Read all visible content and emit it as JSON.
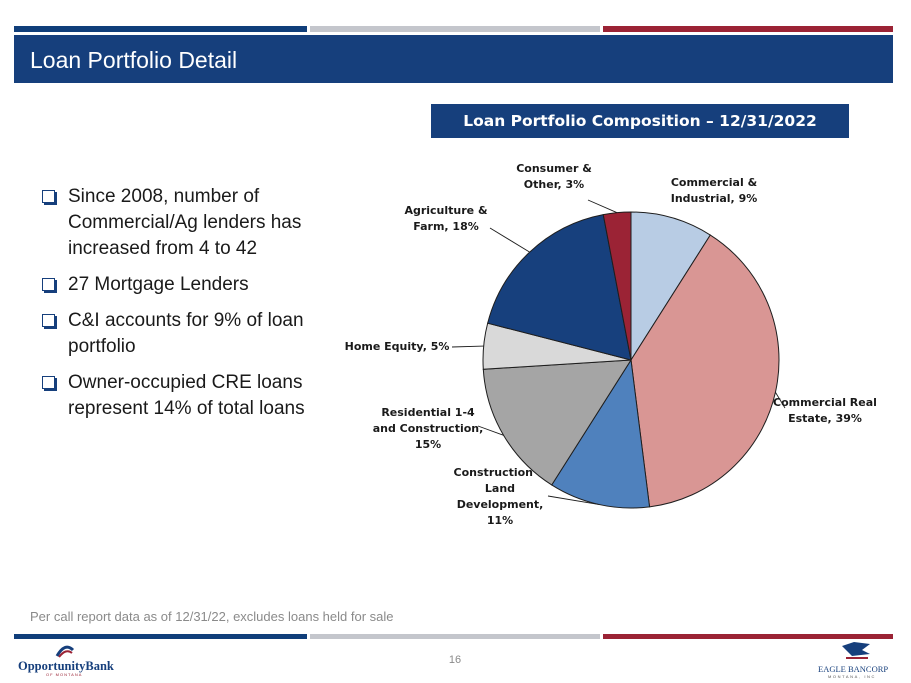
{
  "slide": {
    "title": "Loan Portfolio Detail",
    "chart_heading": "Loan Portfolio Composition – 12/31/2022",
    "bullets": [
      "Since 2008, number of Commercial/Ag lenders has increased from 4 to 42",
      "27 Mortgage Lenders",
      "C&I accounts for 9% of loan portfolio",
      "Owner-occupied CRE loans represent 14% of total loans"
    ],
    "footnote": "Per call report data as of 12/31/22, excludes loans held for sale",
    "page_number": "16",
    "logo_left": {
      "name": "OpportunityBank",
      "sub": "OF MONTANA"
    },
    "logo_right": {
      "name": "EAGLE BANCORP",
      "sub": "MONTANA, INC"
    }
  },
  "colors": {
    "brand_blue": "#163f7c",
    "brand_red": "#9b2335",
    "bar_grey": "#c4c6cc"
  },
  "chart_data": {
    "type": "pie",
    "start_angle_deg": 0,
    "direction": "clockwise",
    "slices": [
      {
        "label": "Commercial & Industrial",
        "value": 9,
        "color": "#b8cce4",
        "label_lines": [
          "Commercial &",
          "Industrial, 9%"
        ]
      },
      {
        "label": "Commercial Real Estate",
        "value": 39,
        "color": "#d99694",
        "label_lines": [
          "Commercial Real",
          "Estate, 39%"
        ]
      },
      {
        "label": "Construction & Land Development",
        "value": 11,
        "color": "#4f81bd",
        "label_lines": [
          "Construction &",
          "Land",
          "Development,",
          "11%"
        ]
      },
      {
        "label": "Residential 1-4 and Construction",
        "value": 15,
        "color": "#a5a5a5",
        "label_lines": [
          "Residential 1-4",
          "and Construction,",
          "15%"
        ]
      },
      {
        "label": "Home Equity",
        "value": 5,
        "color": "#d9d9d9",
        "label_lines": [
          "Home Equity, 5%"
        ]
      },
      {
        "label": "Agriculture & Farm",
        "value": 18,
        "color": "#17407d",
        "label_lines": [
          "Agriculture &",
          "Farm, 18%"
        ]
      },
      {
        "label": "Consumer & Other",
        "value": 3,
        "color": "#9b2335",
        "label_lines": [
          "Consumer &",
          "Other, 3%"
        ]
      }
    ]
  }
}
